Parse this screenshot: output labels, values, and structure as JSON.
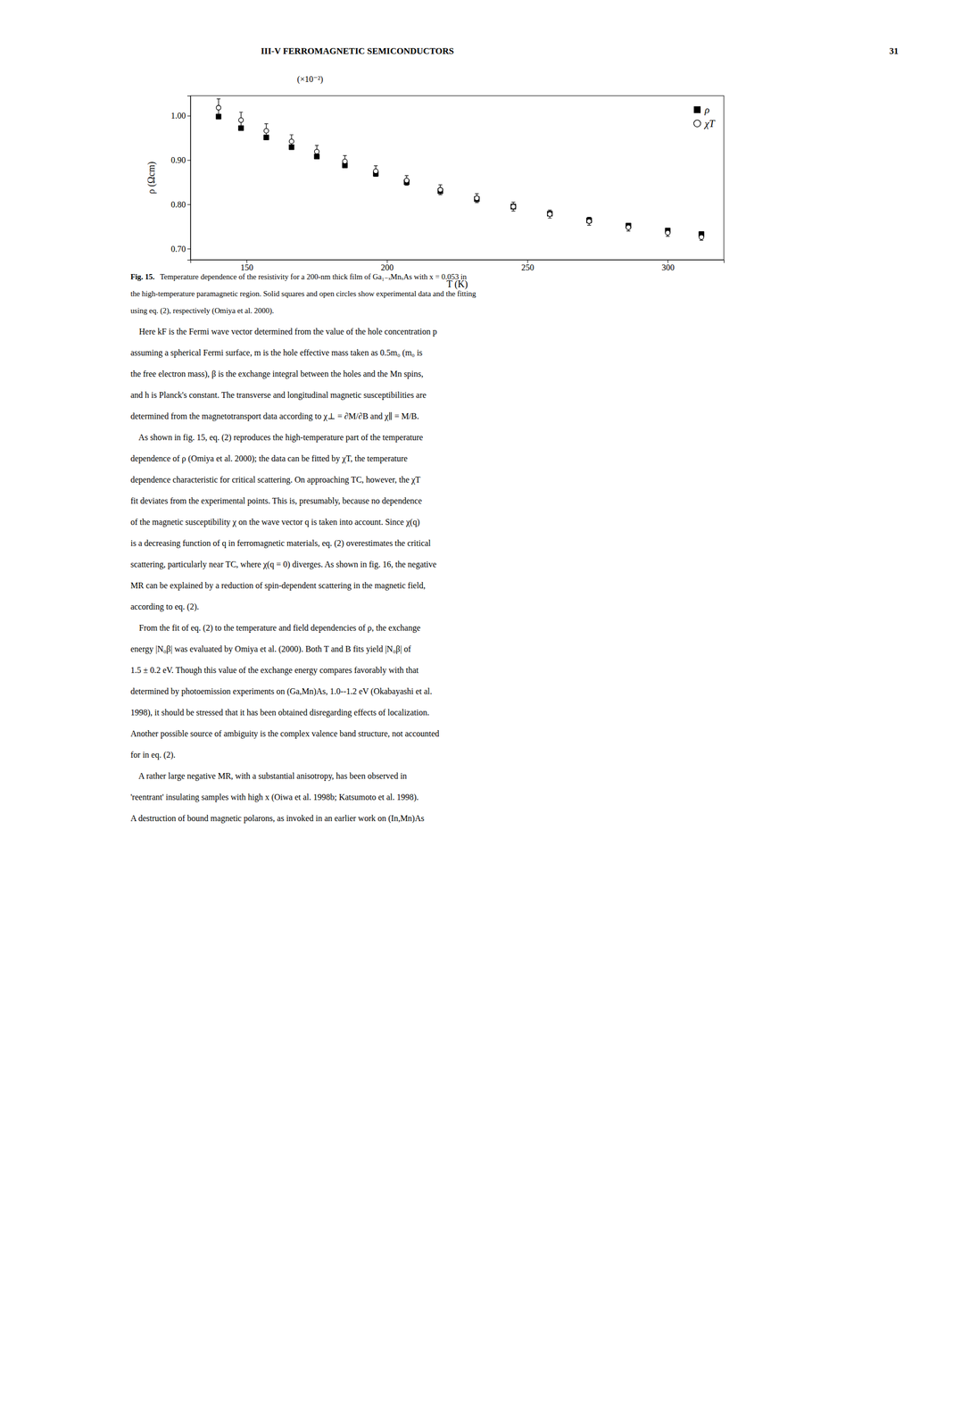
{
  "page": {
    "header_left": "III-V FERROMAGNETIC SEMICONDUCTORS",
    "header_right": "31",
    "caption_label": "Fig. 15.",
    "caption_lines": [
      "Temperature dependence of the resistivity for a 200-nm thick film of Ga₁₋ₓMnₓAs with x = 0.053 in",
      "the high-temperature paramagnetic region. Solid squares and open circles show experimental data and the fitting",
      "using eq. (2), respectively (Omiya et al. 2000)."
    ],
    "body_lines": [
      "    Here kF is the Fermi wave vector determined from the value of the hole concentration p",
      "assuming a spherical Fermi surface, m is the hole effective mass taken as 0.5m₀ (m₀ is",
      "the free electron mass), β is the exchange integral between the holes and the Mn spins,",
      "and h is Planck's constant. The transverse and longitudinal magnetic susceptibilities are",
      "determined from the magnetotransport data according to χ⊥ = ∂M/∂B and χ∥ = M/B.",
      "    As shown in fig. 15, eq. (2) reproduces the high-temperature part of the temperature",
      "dependence of ρ (Omiya et al. 2000); the data can be fitted by χT, the temperature",
      "dependence characteristic for critical scattering. On approaching TC, however, the χT",
      "fit deviates from the experimental points. This is, presumably, because no dependence",
      "of the magnetic susceptibility χ on the wave vector q is taken into account. Since χ(q)",
      "is a decreasing function of q in ferromagnetic materials, eq. (2) overestimates the critical",
      "scattering, particularly near TC, where χ(q = 0) diverges. As shown in fig. 16, the negative",
      "MR can be explained by a reduction of spin-dependent scattering in the magnetic field,",
      "according to eq. (2).",
      "    From the fit of eq. (2) to the temperature and field dependencies of ρ, the exchange",
      "energy |N₀β| was evaluated by Omiya et al. (2000). Both T and B fits yield |N₀β| of",
      "1.5 ± 0.2 eV. Though this value of the exchange energy compares favorably with that",
      "determined by photoemission experiments on (Ga,Mn)As, 1.0--1.2 eV (Okabayashi et al.",
      "1998), it should be stressed that it has been obtained disregarding effects of localization.",
      "Another possible source of ambiguity is the complex valence band structure, not accounted",
      "for in eq. (2).",
      "    A rather large negative MR, with a substantial anisotropy, has been observed in",
      "'reentrant' insulating samples with high x (Oiwa et al. 1998b; Katsumoto et al. 1998).",
      "A destruction of bound magnetic polarons, as invoked in an earlier work on (In,Mn)As"
    ]
  },
  "chart_data": {
    "type": "scatter",
    "xlabel": "T (K)",
    "ylabel": "ρ (Ωcm)",
    "annotations": [
      "(×10⁻²)"
    ],
    "xlim": [
      130,
      320
    ],
    "ylim": [
      0.675,
      1.045
    ],
    "xticks": [
      150,
      200,
      250,
      300
    ],
    "yticks": [
      {
        "value": 0.7,
        "label": "0.70"
      },
      {
        "value": 0.8,
        "label": "0.80"
      },
      {
        "value": 0.9,
        "label": "0.90"
      },
      {
        "value": 1.0,
        "label": "1.00"
      }
    ],
    "grid": false,
    "legend": "upper right",
    "x": [
      140,
      148,
      157,
      166,
      175,
      185,
      196,
      207,
      219,
      232,
      245,
      258,
      272,
      286,
      300,
      312
    ],
    "series": [
      {
        "name": "ρ",
        "marker": "square",
        "color": "black",
        "values": [
          0.998,
          0.972,
          0.951,
          0.929,
          0.908,
          0.888,
          0.869,
          0.85,
          0.83,
          0.812,
          0.795,
          0.779,
          0.764,
          0.752,
          0.741,
          0.733
        ]
      },
      {
        "name": "χT",
        "marker": "open-circle",
        "color": "black",
        "values": [
          1.018,
          0.99,
          0.966,
          0.942,
          0.919,
          0.897,
          0.875,
          0.854,
          0.833,
          0.814,
          0.795,
          0.778,
          0.762,
          0.748,
          0.736,
          0.726
        ],
        "error_lo": [
          0.02,
          0.018,
          0.016,
          0.015,
          0.014,
          0.013,
          0.012,
          0.011,
          0.011,
          0.01,
          0.01,
          0.009,
          0.009,
          0.008,
          0.008,
          0.007
        ],
        "error_hi": [
          0.02,
          0.018,
          0.016,
          0.015,
          0.014,
          0.013,
          0.012,
          0.011,
          0.011,
          0.01,
          0.01,
          0.009,
          0.009,
          0.008,
          0.008,
          0.007
        ]
      }
    ]
  }
}
